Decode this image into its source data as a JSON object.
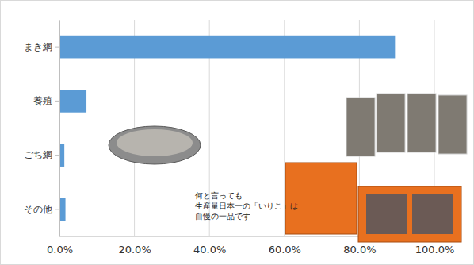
{
  "chart_data": {
    "type": "bar",
    "orientation": "horizontal",
    "categories": [
      "まき網",
      "養殖",
      "ごち網",
      "その他"
    ],
    "values": [
      89.5,
      7.2,
      1.3,
      1.6
    ],
    "color": "#5b9bd5",
    "xlim": [
      0,
      100
    ],
    "xticks": [
      {
        "value": 0,
        "label": "0.0%"
      },
      {
        "value": 20,
        "label": "20.0%"
      },
      {
        "value": 40,
        "label": "40.0%"
      },
      {
        "value": 60,
        "label": "60.0%"
      },
      {
        "value": 80,
        "label": "80.0%"
      },
      {
        "value": 100,
        "label": "100.0%"
      }
    ],
    "grid": true,
    "annotations": [
      "何と言っても",
      "生産量日本一の「いりこ」は",
      "自慢の一品です"
    ]
  }
}
